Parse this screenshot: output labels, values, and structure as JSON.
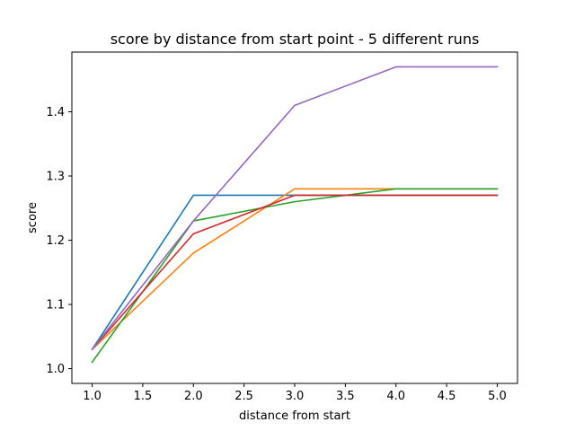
{
  "chart_data": {
    "type": "line",
    "title": "score by distance from start point - 5 different runs",
    "xlabel": "distance from start",
    "ylabel": "score",
    "x": [
      1.0,
      2.0,
      3.0,
      4.0,
      5.0
    ],
    "xlim": [
      0.8,
      5.2
    ],
    "ylim": [
      0.977,
      1.493
    ],
    "xticks": [
      1.0,
      1.5,
      2.0,
      2.5,
      3.0,
      3.5,
      4.0,
      4.5,
      5.0
    ],
    "xtick_labels": [
      "1.0",
      "1.5",
      "2.0",
      "2.5",
      "3.0",
      "3.5",
      "4.0",
      "4.5",
      "5.0"
    ],
    "yticks": [
      1.0,
      1.1,
      1.2,
      1.3,
      1.4
    ],
    "ytick_labels": [
      "1.0",
      "1.1",
      "1.2",
      "1.3",
      "1.4"
    ],
    "grid": false,
    "legend": "none",
    "series": [
      {
        "color": "#1f77b4",
        "values": [
          1.03,
          1.27,
          1.27,
          1.27,
          1.27
        ]
      },
      {
        "color": "#ff7f0e",
        "values": [
          1.03,
          1.18,
          1.28,
          1.28,
          1.28
        ]
      },
      {
        "color": "#2ca02c",
        "values": [
          1.01,
          1.23,
          1.26,
          1.28,
          1.28
        ]
      },
      {
        "color": "#d62728",
        "values": [
          1.03,
          1.21,
          1.27,
          1.27,
          1.27
        ]
      },
      {
        "color": "#9467bd",
        "values": [
          1.03,
          1.23,
          1.41,
          1.47,
          1.47
        ]
      }
    ]
  }
}
